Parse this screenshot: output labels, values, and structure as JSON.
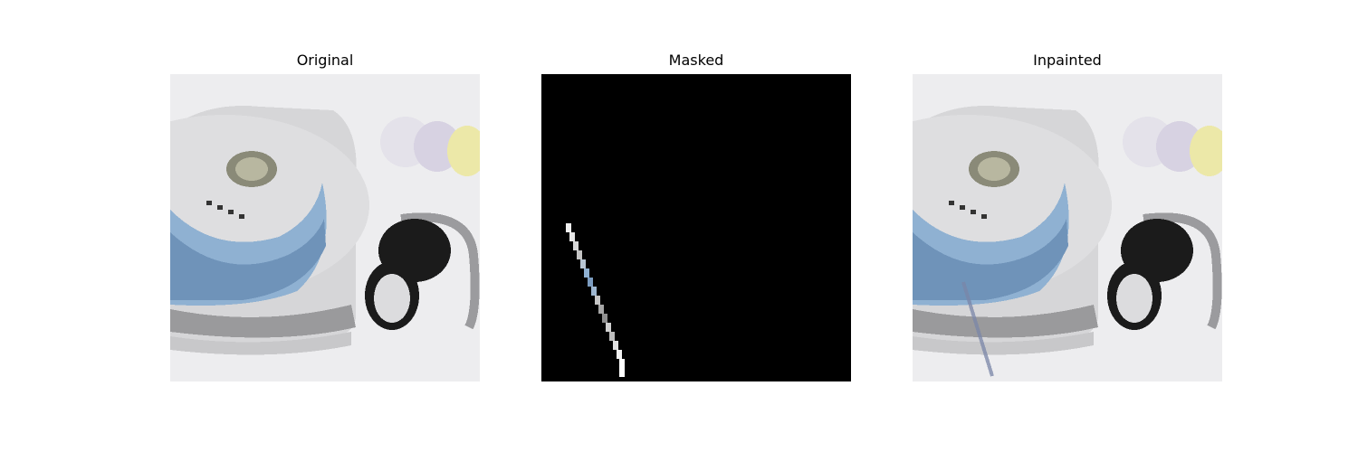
{
  "panels": [
    {
      "id": "original",
      "title": "Original",
      "content": "pixelated photo of a device with blue dial and black knob"
    },
    {
      "id": "masked",
      "title": "Masked",
      "content": "black mask with a thin diagonal revealed line"
    },
    {
      "id": "inpainted",
      "title": "Inpainted",
      "content": "reconstructed photo with a faint diagonal artifact line"
    }
  ],
  "colors": {
    "background": "#ffffff",
    "mask": "#000000",
    "photo_bg": "#ececee",
    "dial_blue": "#8eb0d0",
    "knob_black": "#1a1a1a"
  }
}
